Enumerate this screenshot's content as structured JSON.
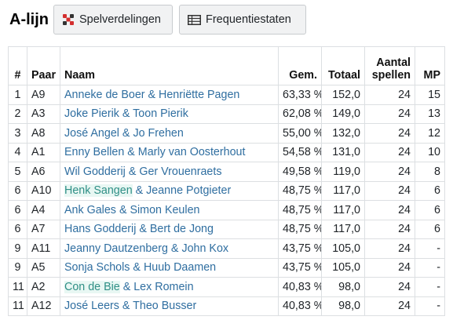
{
  "header": {
    "title": "A-lijn",
    "buttons": {
      "spelverdelingen": {
        "label": "Spelverdelingen",
        "icon": "dice-icon"
      },
      "frequentiestaten": {
        "label": "Frequentiestaten",
        "icon": "table-icon"
      }
    }
  },
  "table": {
    "columns": {
      "rank": "#",
      "pair": "Paar",
      "name": "Naam",
      "avg": "Gem.",
      "total": "Totaal",
      "boards_line1": "Aantal",
      "boards_line2": "spellen",
      "mp": "MP"
    },
    "rows": [
      {
        "rank": "1",
        "pair": "A9",
        "name_a": "Anneke de Boer",
        "sep": " & ",
        "name_b": "Henriëtte Pagen",
        "avg": "63,33 %",
        "total": "152,0",
        "boards": "24",
        "mp": "15"
      },
      {
        "rank": "2",
        "pair": "A3",
        "name_a": "Joke Pierik",
        "sep": " & ",
        "name_b": "Toon Pierik",
        "avg": "62,08 %",
        "total": "149,0",
        "boards": "24",
        "mp": "13"
      },
      {
        "rank": "3",
        "pair": "A8",
        "name_a": "José Angel",
        "sep": " & ",
        "name_b": "Jo Frehen",
        "avg": "55,00 %",
        "total": "132,0",
        "boards": "24",
        "mp": "12"
      },
      {
        "rank": "4",
        "pair": "A1",
        "name_a": "Enny Bellen",
        "sep": " & ",
        "name_b": "Marly van Oosterhout",
        "avg": "54,58 %",
        "total": "131,0",
        "boards": "24",
        "mp": "10"
      },
      {
        "rank": "5",
        "pair": "A6",
        "name_a": "Wil Godderij",
        "sep": " & ",
        "name_b": "Ger Vrouenraets",
        "avg": "49,58 %",
        "total": "119,0",
        "boards": "24",
        "mp": "8"
      },
      {
        "rank": "6",
        "pair": "A10",
        "name_a": "Henk Sangen",
        "sep": " & ",
        "name_b": "Jeanne Potgieter",
        "avg": "48,75 %",
        "total": "117,0",
        "boards": "24",
        "mp": "6",
        "highlight": true
      },
      {
        "rank": "6",
        "pair": "A4",
        "name_a": "Ank Gales",
        "sep": " & ",
        "name_b": "Simon Keulen",
        "avg": "48,75 %",
        "total": "117,0",
        "boards": "24",
        "mp": "6"
      },
      {
        "rank": "6",
        "pair": "A7",
        "name_a": "Hans Godderij",
        "sep": " & ",
        "name_b": "Bert de Jong",
        "avg": "48,75 %",
        "total": "117,0",
        "boards": "24",
        "mp": "6"
      },
      {
        "rank": "9",
        "pair": "A11",
        "name_a": "Jeanny Dautzenberg",
        "sep": " & ",
        "name_b": "John Kox",
        "avg": "43,75 %",
        "total": "105,0",
        "boards": "24",
        "mp": "-"
      },
      {
        "rank": "9",
        "pair": "A5",
        "name_a": "Sonja Schols",
        "sep": " & ",
        "name_b": "Huub Daamen",
        "avg": "43,75 %",
        "total": "105,0",
        "boards": "24",
        "mp": "-"
      },
      {
        "rank": "11",
        "pair": "A2",
        "name_a": "Con de Bie",
        "sep": " & ",
        "name_b": "Lex Romein",
        "avg": "40,83 %",
        "total": "98,0",
        "boards": "24",
        "mp": "-",
        "highlight": true
      },
      {
        "rank": "11",
        "pair": "A12",
        "name_a": "José Leers",
        "sep": " & ",
        "name_b": "Theo Busser",
        "avg": "40,83 %",
        "total": "98,0",
        "boards": "24",
        "mp": "-"
      }
    ]
  },
  "colors": {
    "link": "#2f6ea0",
    "highlight_bg": "#e8f7f3",
    "icon_red": "#d32f2f"
  }
}
